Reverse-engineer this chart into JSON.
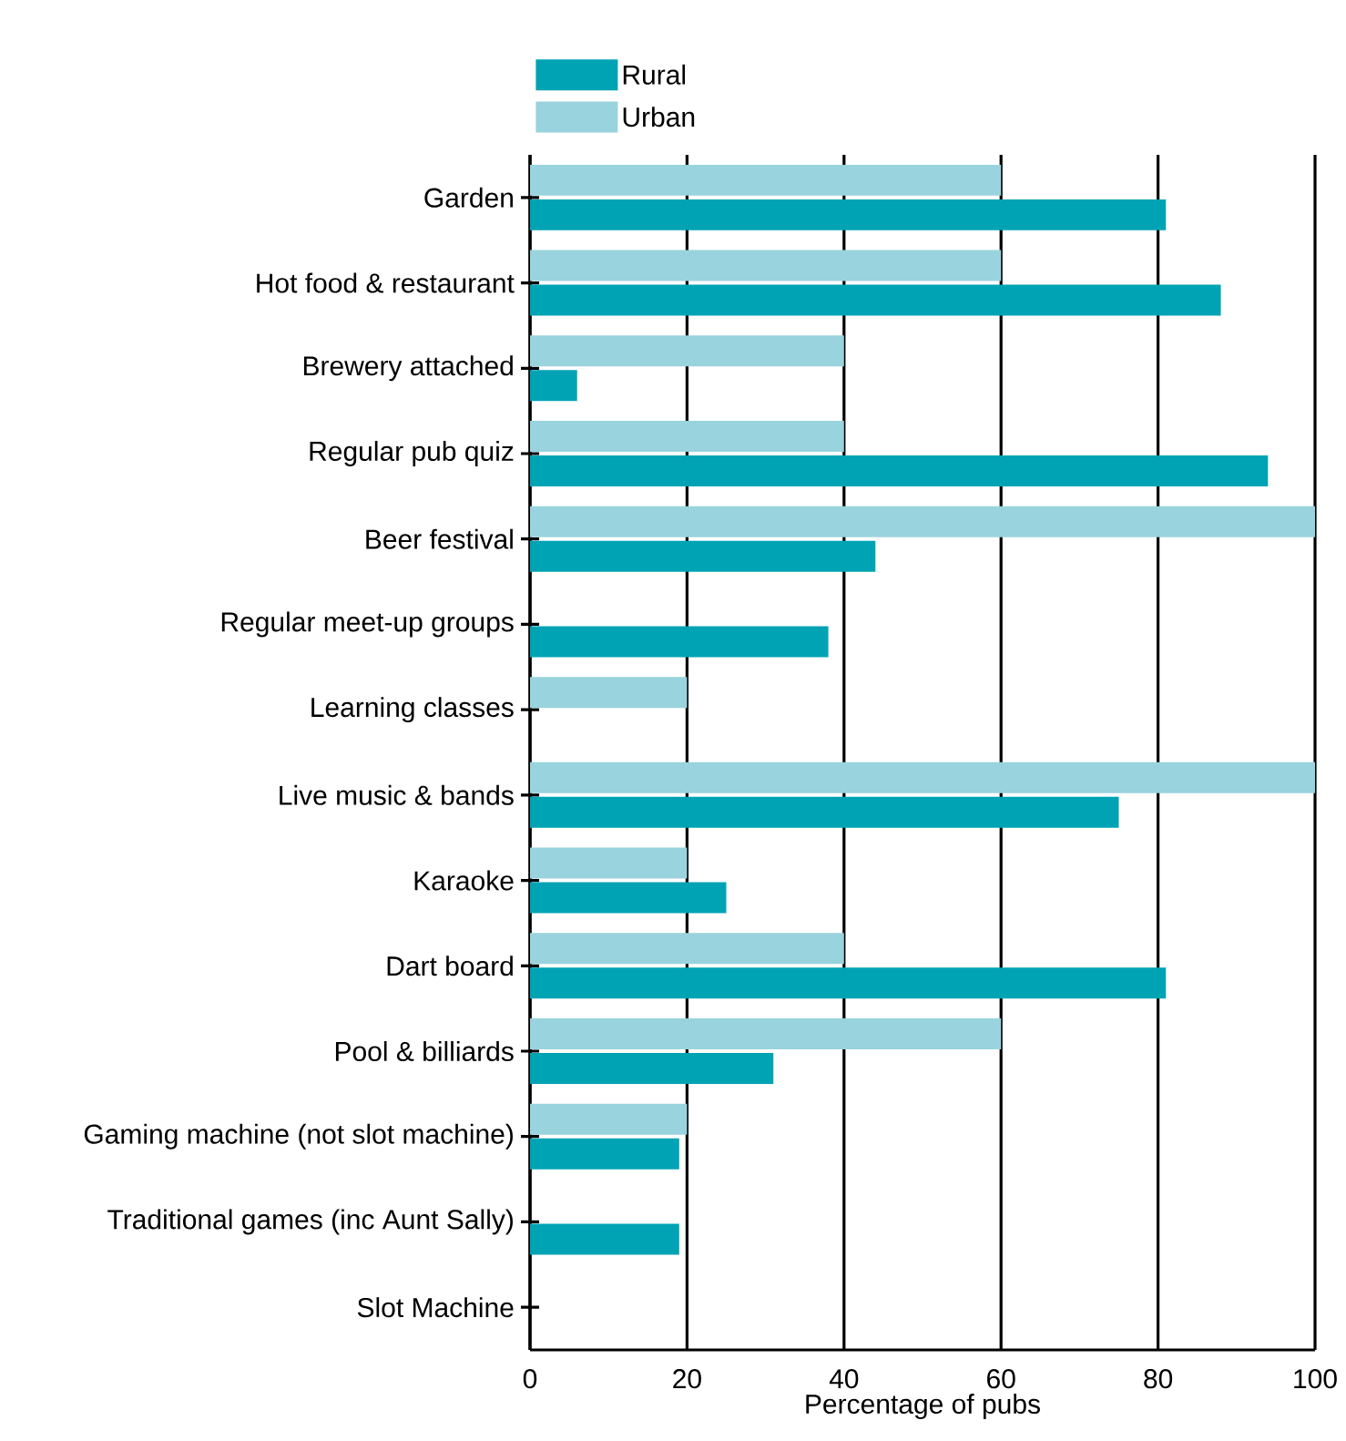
{
  "chart_data": {
    "type": "bar",
    "orientation": "horizontal",
    "xlabel": "Percentage of pubs",
    "categories": [
      "Garden",
      "Hot food & restaurant",
      "Brewery attached",
      "Regular pub quiz",
      "Beer festival",
      "Regular meet-up groups",
      "Learning classes",
      "Live music & bands",
      "Karaoke",
      "Dart board",
      "Pool & billiards",
      "Gaming machine (not slot machine)",
      "Traditional games (inc Aunt Sally)",
      "Slot Machine"
    ],
    "series": [
      {
        "name": "Rural",
        "color": "#00a3b4",
        "values": [
          81,
          88,
          6,
          94,
          44,
          38,
          0,
          75,
          25,
          81,
          31,
          19,
          19,
          0
        ]
      },
      {
        "name": "Urban",
        "color": "#99d3dd",
        "values": [
          60,
          60,
          40,
          40,
          100,
          0,
          20,
          100,
          20,
          40,
          60,
          20,
          0,
          0
        ]
      }
    ],
    "xlim": [
      0,
      100
    ],
    "xticks": [
      0,
      20,
      40,
      60,
      80,
      100
    ],
    "grid": "x",
    "legend": "top"
  }
}
